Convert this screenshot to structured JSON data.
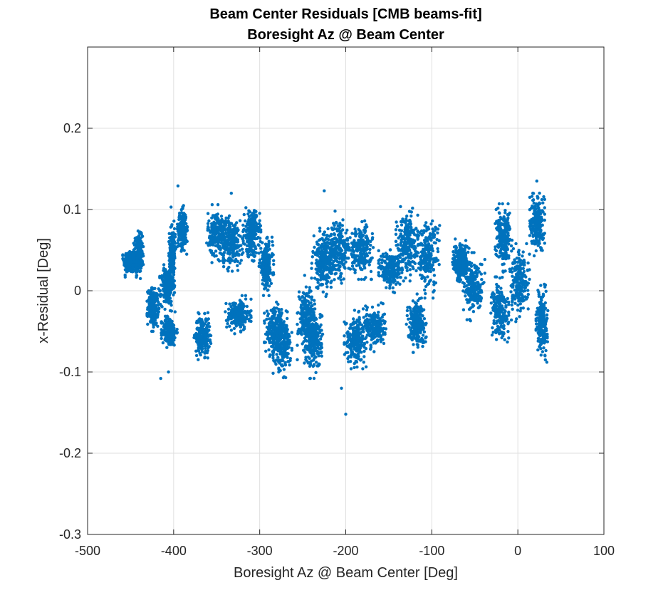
{
  "chart_data": {
    "type": "scatter",
    "title": "Beam Center Residuals [CMB beams-fit]",
    "subtitle": "Boresight Az @ Beam Center",
    "xlabel": "Boresight Az @ Beam Center [Deg]",
    "ylabel": "x-Residual [Deg]",
    "xlim": [
      -500,
      100
    ],
    "ylim": [
      -0.3,
      0.3
    ],
    "xticks": [
      -500,
      -400,
      -300,
      -200,
      -100,
      0,
      100
    ],
    "yticks": [
      -0.3,
      -0.2,
      -0.1,
      0,
      0.1,
      0.2
    ],
    "xtick_labels": [
      "-500",
      "-400",
      "-300",
      "-200",
      "-100",
      "0",
      "100"
    ],
    "ytick_labels": [
      "-0.3",
      "-0.2",
      "-0.1",
      "0",
      "0.1",
      "0.2"
    ],
    "grid": true,
    "marker_color": "#0072BD",
    "clusters": [
      {
        "x": [
          -458,
          -443
        ],
        "y": [
          0.02,
          0.052
        ]
      },
      {
        "x": [
          -446,
          -436
        ],
        "y": [
          0.02,
          0.07
        ]
      },
      {
        "x": [
          -430,
          -418
        ],
        "y": [
          -0.045,
          0.005
        ]
      },
      {
        "x": [
          -415,
          -400
        ],
        "y": [
          -0.02,
          0.03
        ]
      },
      {
        "x": [
          -413,
          -397
        ],
        "y": [
          -0.07,
          -0.03
        ]
      },
      {
        "x": [
          -405,
          -398
        ],
        "y": [
          0.01,
          0.08
        ]
      },
      {
        "x": [
          -395,
          -385
        ],
        "y": [
          0.05,
          0.1
        ]
      },
      {
        "x": [
          -375,
          -358
        ],
        "y": [
          -0.08,
          -0.03
        ]
      },
      {
        "x": [
          -360,
          -338
        ],
        "y": [
          0.04,
          0.1
        ]
      },
      {
        "x": [
          -345,
          -320
        ],
        "y": [
          0.03,
          0.09
        ]
      },
      {
        "x": [
          -338,
          -312
        ],
        "y": [
          -0.05,
          -0.01
        ]
      },
      {
        "x": [
          -318,
          -300
        ],
        "y": [
          0.04,
          0.1
        ]
      },
      {
        "x": [
          -300,
          -285
        ],
        "y": [
          0.0,
          0.06
        ]
      },
      {
        "x": [
          -293,
          -272
        ],
        "y": [
          -0.08,
          -0.02
        ]
      },
      {
        "x": [
          -283,
          -264
        ],
        "y": [
          -0.1,
          -0.03
        ]
      },
      {
        "x": [
          -255,
          -238
        ],
        "y": [
          -0.08,
          0.01
        ]
      },
      {
        "x": [
          -244,
          -228
        ],
        "y": [
          -0.1,
          -0.02
        ]
      },
      {
        "x": [
          -238,
          -215
        ],
        "y": [
          0.0,
          0.07
        ]
      },
      {
        "x": [
          -222,
          -195
        ],
        "y": [
          0.01,
          0.09
        ]
      },
      {
        "x": [
          -200,
          -178
        ],
        "y": [
          -0.09,
          -0.03
        ]
      },
      {
        "x": [
          -195,
          -170
        ],
        "y": [
          0.02,
          0.08
        ]
      },
      {
        "x": [
          -178,
          -155
        ],
        "y": [
          -0.07,
          -0.02
        ]
      },
      {
        "x": [
          -160,
          -136
        ],
        "y": [
          0.0,
          0.05
        ]
      },
      {
        "x": [
          -140,
          -118
        ],
        "y": [
          0.02,
          0.1
        ]
      },
      {
        "x": [
          -128,
          -108
        ],
        "y": [
          -0.07,
          -0.01
        ]
      },
      {
        "x": [
          -118,
          -92
        ],
        "y": [
          0.0,
          0.09
        ]
      },
      {
        "x": [
          -75,
          -58
        ],
        "y": [
          0.01,
          0.06
        ]
      },
      {
        "x": [
          -62,
          -40
        ],
        "y": [
          -0.03,
          0.04
        ]
      },
      {
        "x": [
          -30,
          -12
        ],
        "y": [
          -0.06,
          0.01
        ]
      },
      {
        "x": [
          -25,
          -8
        ],
        "y": [
          0.03,
          0.1
        ]
      },
      {
        "x": [
          -8,
          12
        ],
        "y": [
          -0.03,
          0.05
        ]
      },
      {
        "x": [
          15,
          30
        ],
        "y": [
          0.05,
          0.12
        ]
      },
      {
        "x": [
          22,
          34
        ],
        "y": [
          -0.08,
          0.0
        ]
      }
    ],
    "outliers": [
      {
        "x": -415,
        "y": -0.108
      },
      {
        "x": -395,
        "y": 0.129
      },
      {
        "x": -333,
        "y": 0.12
      },
      {
        "x": -225,
        "y": 0.123
      },
      {
        "x": -205,
        "y": -0.12
      },
      {
        "x": -200,
        "y": -0.152
      },
      {
        "x": 22,
        "y": 0.135
      },
      {
        "x": 32,
        "y": -0.085
      },
      {
        "x": -403,
        "y": 0.103
      },
      {
        "x": -406,
        "y": -0.1
      }
    ]
  }
}
